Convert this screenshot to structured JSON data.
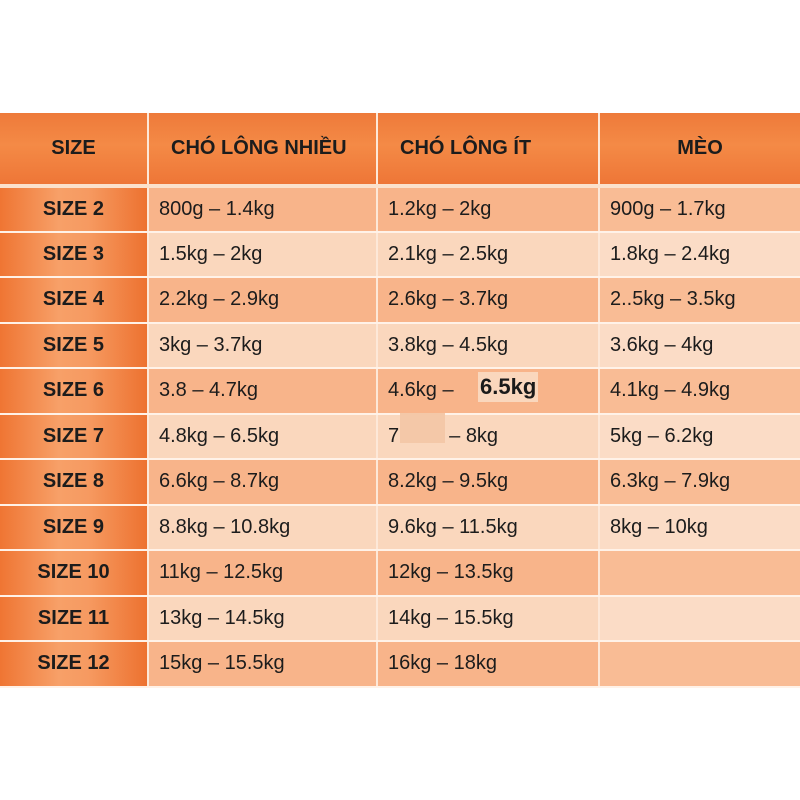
{
  "headers": {
    "size": "SIZE",
    "long_nhieu": "CHÓ LÔNG NHIỀU",
    "long_it": "CHÓ LÔNG ÍT",
    "meo": "MÈO"
  },
  "rows": [
    {
      "size": "SIZE 2",
      "long_nhieu": "800g – 1.4kg",
      "long_it": "1.2kg – 2kg",
      "meo": "900g – 1.7kg"
    },
    {
      "size": "SIZE 3",
      "long_nhieu": "1.5kg – 2kg",
      "long_it": "2.1kg – 2.5kg",
      "meo": "1.8kg – 2.4kg"
    },
    {
      "size": "SIZE 4",
      "long_nhieu": "2.2kg – 2.9kg",
      "long_it": "2.6kg – 3.7kg",
      "meo": "2..5kg – 3.5kg"
    },
    {
      "size": "SIZE 5",
      "long_nhieu": "3kg – 3.7kg",
      "long_it": "3.8kg – 4.5kg",
      "meo": "3.6kg – 4kg"
    },
    {
      "size": "SIZE 6",
      "long_nhieu": "3.8 – 4.7kg",
      "long_it": "4.6kg – ",
      "meo": "4.1kg – 4.9kg"
    },
    {
      "size": "SIZE 7",
      "long_nhieu": "4.8kg – 6.5kg",
      "long_it": "7         – 8kg",
      "meo": "5kg – 6.2kg"
    },
    {
      "size": "SIZE 8",
      "long_nhieu": "6.6kg – 8.7kg",
      "long_it": "8.2kg – 9.5kg",
      "meo": "6.3kg – 7.9kg"
    },
    {
      "size": "SIZE 9",
      "long_nhieu": "8.8kg – 10.8kg",
      "long_it": "9.6kg – 11.5kg",
      "meo": "8kg – 10kg"
    },
    {
      "size": "SIZE 10",
      "long_nhieu": "11kg – 12.5kg",
      "long_it": "12kg – 13.5kg",
      "meo": ""
    },
    {
      "size": "SIZE 11",
      "long_nhieu": "13kg – 14.5kg",
      "long_it": "14kg – 15.5kg",
      "meo": ""
    },
    {
      "size": "SIZE 12",
      "long_nhieu": "15kg – 15.5kg",
      "long_it": "16kg – 18kg",
      "meo": ""
    }
  ],
  "overlay": "6.5kg"
}
